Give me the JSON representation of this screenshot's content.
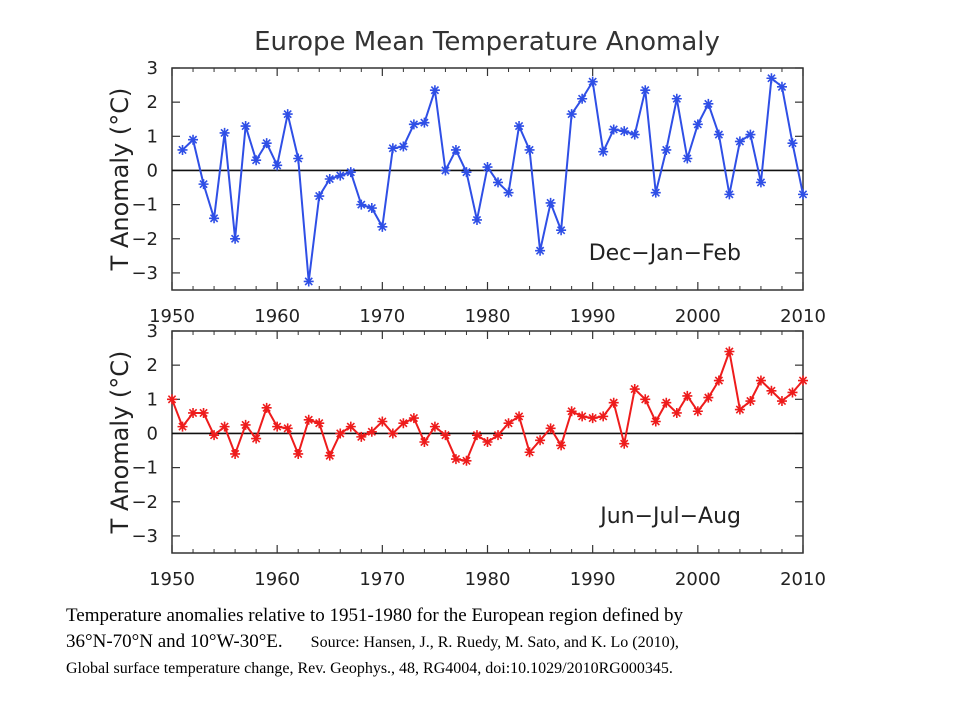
{
  "title": "Europe Mean Temperature Anomaly",
  "chart_data": [
    {
      "type": "line",
      "season_label": "Dec−Jan−Feb",
      "ylabel": "T Anomaly (°C)",
      "xlabel": "",
      "xlim": [
        1950,
        2010
      ],
      "ylim": [
        -3.5,
        3
      ],
      "x_ticks": [
        "1950",
        "1960",
        "1970",
        "1980",
        "1990",
        "2000",
        "2010"
      ],
      "y_ticks": [
        "3",
        "2",
        "1",
        "0",
        "−1",
        "−2",
        "−3"
      ],
      "color": "#2f4fe6",
      "marker": "asterisk",
      "zero_line": true,
      "x": [
        1951,
        1952,
        1953,
        1954,
        1955,
        1956,
        1957,
        1958,
        1959,
        1960,
        1961,
        1962,
        1963,
        1964,
        1965,
        1966,
        1967,
        1968,
        1969,
        1970,
        1971,
        1972,
        1973,
        1974,
        1975,
        1976,
        1977,
        1978,
        1979,
        1980,
        1981,
        1982,
        1983,
        1984,
        1985,
        1986,
        1987,
        1988,
        1989,
        1990,
        1991,
        1992,
        1993,
        1994,
        1995,
        1996,
        1997,
        1998,
        1999,
        2000,
        2001,
        2002,
        2003,
        2004,
        2005,
        2006,
        2007,
        2008,
        2009,
        2010
      ],
      "values": [
        0.6,
        0.9,
        -0.4,
        -1.4,
        1.1,
        -2.0,
        1.3,
        0.3,
        0.8,
        0.15,
        1.65,
        0.35,
        -3.25,
        -0.75,
        -0.25,
        -0.15,
        -0.05,
        -1.0,
        -1.1,
        -1.65,
        0.65,
        0.7,
        1.35,
        1.4,
        2.35,
        0.0,
        0.6,
        -0.05,
        -1.45,
        0.1,
        -0.35,
        -0.65,
        1.3,
        0.6,
        -2.35,
        -0.95,
        -1.75,
        1.65,
        2.1,
        2.6,
        0.55,
        1.2,
        1.15,
        1.05,
        2.35,
        -0.65,
        0.6,
        2.1,
        0.35,
        1.35,
        1.95,
        1.05,
        -0.7,
        0.85,
        1.05,
        -0.35,
        2.7,
        2.45,
        0.8,
        -0.7
      ]
    },
    {
      "type": "line",
      "season_label": "Jun−Jul−Aug",
      "ylabel": "T Anomaly (°C)",
      "xlabel": "",
      "xlim": [
        1950,
        2010
      ],
      "ylim": [
        -3.5,
        3
      ],
      "x_ticks": [
        "1950",
        "1960",
        "1970",
        "1980",
        "1990",
        "2000",
        "2010"
      ],
      "y_ticks": [
        "3",
        "2",
        "1",
        "0",
        "−1",
        "−2",
        "−3"
      ],
      "color": "#ee1c1c",
      "marker": "asterisk",
      "zero_line": true,
      "x": [
        1950,
        1951,
        1952,
        1953,
        1954,
        1955,
        1956,
        1957,
        1958,
        1959,
        1960,
        1961,
        1962,
        1963,
        1964,
        1965,
        1966,
        1967,
        1968,
        1969,
        1970,
        1971,
        1972,
        1973,
        1974,
        1975,
        1976,
        1977,
        1978,
        1979,
        1980,
        1981,
        1982,
        1983,
        1984,
        1985,
        1986,
        1987,
        1988,
        1989,
        1990,
        1991,
        1992,
        1993,
        1994,
        1995,
        1996,
        1997,
        1998,
        1999,
        2000,
        2001,
        2002,
        2003,
        2004,
        2005,
        2006,
        2007,
        2008,
        2009,
        2010
      ],
      "values": [
        1.0,
        0.2,
        0.6,
        0.6,
        -0.05,
        0.2,
        -0.6,
        0.25,
        -0.15,
        0.75,
        0.2,
        0.15,
        -0.6,
        0.4,
        0.3,
        -0.65,
        0.0,
        0.2,
        -0.1,
        0.05,
        0.35,
        0.0,
        0.3,
        0.45,
        -0.25,
        0.2,
        -0.05,
        -0.75,
        -0.8,
        -0.05,
        -0.25,
        -0.05,
        0.3,
        0.5,
        -0.55,
        -0.2,
        0.15,
        -0.35,
        0.65,
        0.5,
        0.45,
        0.5,
        0.9,
        -0.3,
        1.3,
        1.0,
        0.35,
        0.9,
        0.6,
        1.1,
        0.65,
        1.05,
        1.55,
        2.4,
        0.7,
        0.95,
        1.55,
        1.25,
        0.95,
        1.2,
        1.55
      ]
    }
  ],
  "caption": {
    "line1": "Temperature anomalies relative to 1951-1980 for the European region defined by",
    "line2_main": "36°N-70°N and 10°W-30°E.",
    "line2_source": "Source: Hansen, J., R. Ruedy, M. Sato, and K. Lo (2010),",
    "line3": "Global surface temperature change, Rev. Geophys., 48, RG4004, doi:10.1029/2010RG000345."
  }
}
